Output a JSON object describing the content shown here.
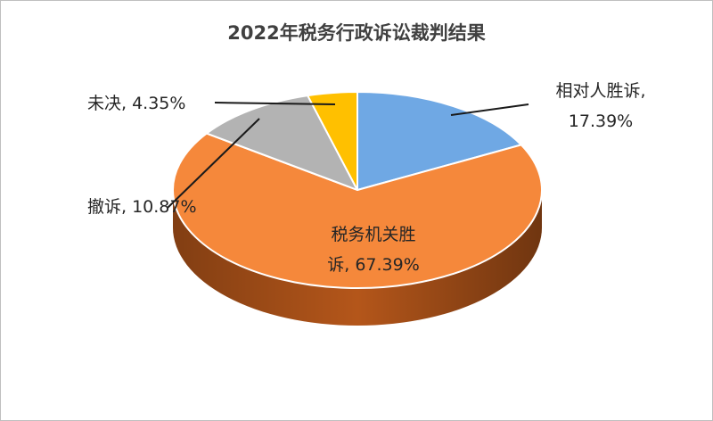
{
  "chart_data": {
    "type": "pie",
    "title": "2022年税务行政诉讼裁判结果",
    "categories": [
      "相对人胜诉",
      "税务机关胜诉",
      "撤诉",
      "未决"
    ],
    "values": [
      17.39,
      67.39,
      10.87,
      4.35
    ],
    "value_labels": [
      "17.39%",
      "67.39%",
      "10.87%",
      "4.35%"
    ],
    "label_lines": [
      [
        "相对人胜诉,",
        "17.39%"
      ],
      [
        "税务机关胜",
        "诉, 67.39%"
      ],
      [
        "撤诉, 10.87%"
      ],
      [
        "未决, 4.35%"
      ]
    ],
    "colors": [
      "#6fa8e4",
      "#f5883b",
      "#b3b3b3",
      "#ffc000"
    ],
    "side_colors": [
      "#3f6fa3",
      "#b4561a",
      "#7a7a7a",
      "#b38600"
    ],
    "style": "3d-pie",
    "legend": "none"
  }
}
